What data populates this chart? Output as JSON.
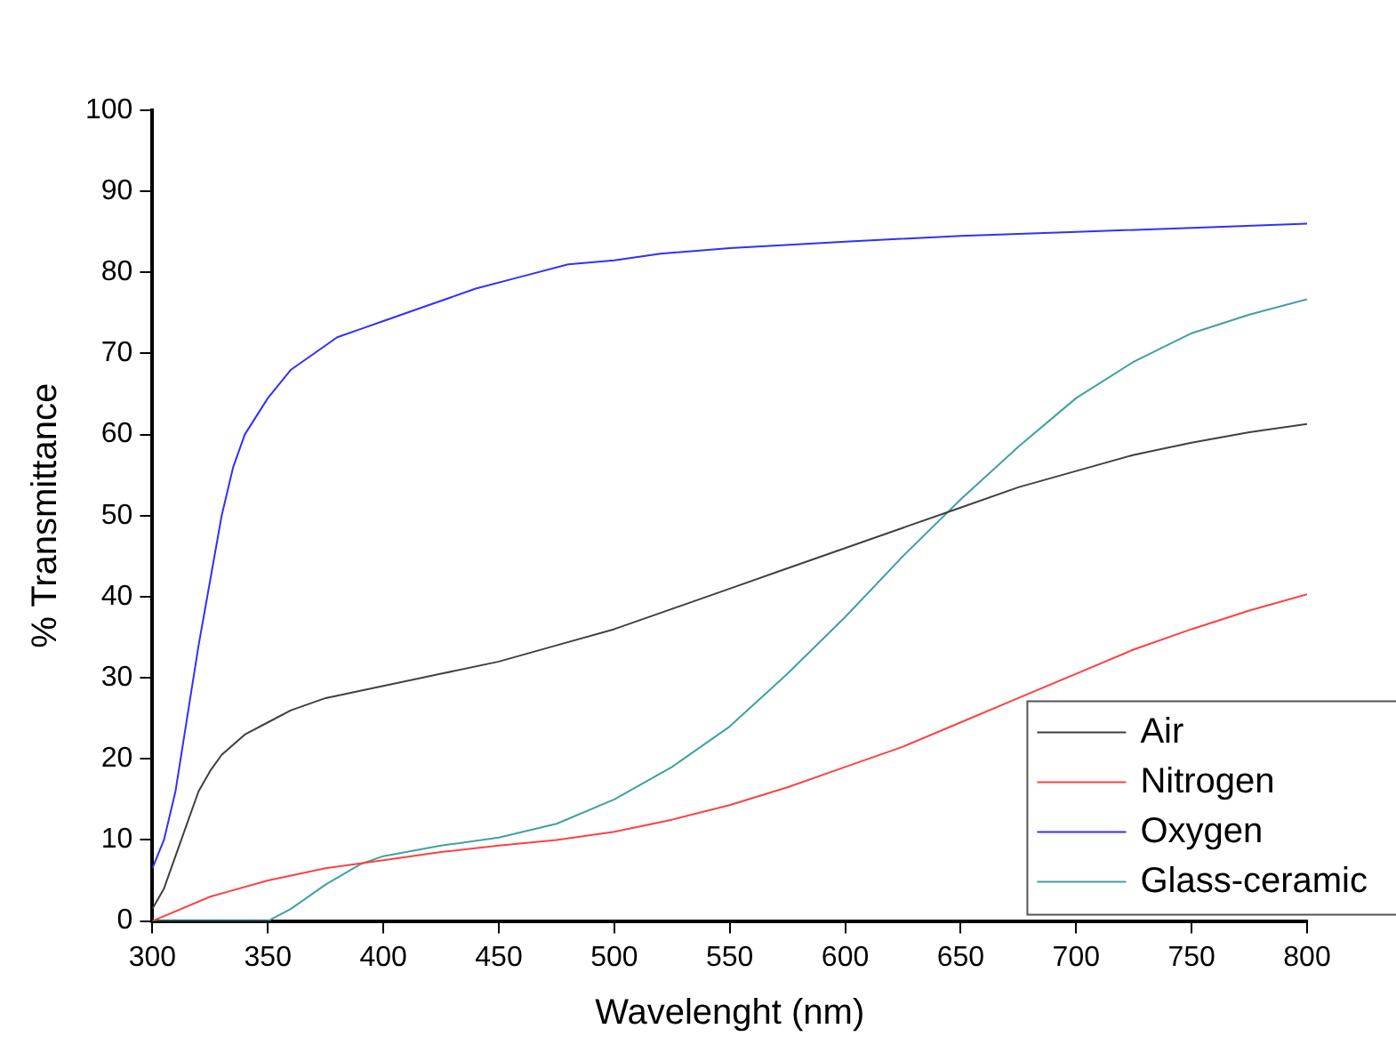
{
  "chart_data": {
    "type": "line",
    "xlabel": "Wavelenght (nm)",
    "ylabel": "% Transmittance",
    "xlim": [
      300,
      800
    ],
    "ylim": [
      0,
      100
    ],
    "xticks": [
      300,
      350,
      400,
      450,
      500,
      550,
      600,
      650,
      700,
      750,
      800
    ],
    "yticks": [
      0,
      10,
      20,
      30,
      40,
      50,
      60,
      70,
      80,
      90,
      100
    ],
    "grid": false,
    "legend": "bottom right",
    "marker": "none",
    "line_style": "solid",
    "series": [
      {
        "name": "Air",
        "color": "#404040",
        "x": [
          300,
          305,
          310,
          315,
          320,
          325,
          330,
          340,
          350,
          360,
          375,
          400,
          425,
          450,
          475,
          500,
          525,
          550,
          575,
          600,
          625,
          650,
          675,
          700,
          725,
          750,
          775,
          800
        ],
        "values": [
          1.5,
          4,
          8,
          12,
          16,
          18.5,
          20.5,
          23,
          24.5,
          26,
          27.5,
          29,
          30.5,
          32,
          34,
          36,
          38.5,
          41,
          43.5,
          46,
          48.5,
          51,
          53.5,
          55.5,
          57.5,
          59,
          60.3,
          61.3
        ]
      },
      {
        "name": "Nitrogen",
        "color": "#ff4040",
        "x": [
          300,
          325,
          350,
          375,
          400,
          425,
          450,
          475,
          500,
          525,
          550,
          575,
          600,
          625,
          650,
          675,
          700,
          725,
          750,
          775,
          800
        ],
        "values": [
          0,
          3,
          5,
          6.5,
          7.5,
          8.5,
          9.3,
          10,
          11,
          12.5,
          14.3,
          16.5,
          19,
          21.5,
          24.5,
          27.5,
          30.5,
          33.5,
          36,
          38.3,
          40.3
        ]
      },
      {
        "name": "Oxygen",
        "color": "#3030ff",
        "x": [
          300,
          305,
          310,
          315,
          320,
          325,
          330,
          335,
          340,
          350,
          360,
          370,
          380,
          390,
          400,
          420,
          440,
          460,
          480,
          500,
          520,
          550,
          600,
          650,
          700,
          750,
          800
        ],
        "values": [
          6.5,
          10,
          16,
          25,
          34,
          42,
          50,
          56,
          60,
          64.5,
          68,
          70,
          72,
          73,
          74,
          76,
          78,
          79.5,
          81,
          81.5,
          82.3,
          83,
          83.8,
          84.5,
          85,
          85.5,
          86
        ]
      },
      {
        "name": "Glass-ceramic",
        "color": "#40a0a0",
        "x": [
          300,
          350,
          360,
          375,
          390,
          400,
          425,
          450,
          475,
          500,
          525,
          550,
          575,
          600,
          625,
          650,
          675,
          700,
          725,
          750,
          775,
          800
        ],
        "values": [
          0,
          0,
          1.5,
          4.5,
          7,
          8,
          9.3,
          10.3,
          12,
          15,
          19,
          24,
          30.5,
          37.5,
          45,
          52,
          58.5,
          64.5,
          69,
          72.5,
          74.8,
          76.7
        ]
      }
    ]
  }
}
